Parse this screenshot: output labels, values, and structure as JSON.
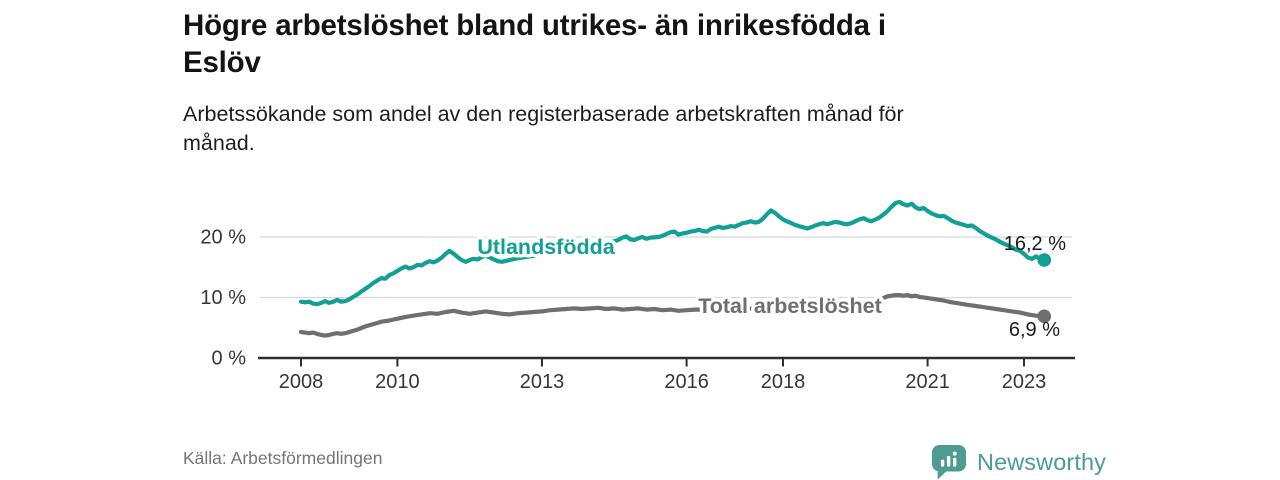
{
  "header": {
    "title_line1": "Högre arbetslöshet bland utrikes- än inrikesfödda i",
    "title_line2": "Eslöv",
    "subtitle_line1": "Arbetssökande som andel av den registerbaserade arbetskraften månad för",
    "subtitle_line2": "månad."
  },
  "footer": {
    "source": "Källa: Arbetsförmedlingen",
    "brand": "Newsworthy"
  },
  "colors": {
    "series_utlandsfodda": "#12a096",
    "series_total": "#6f6f6f",
    "grid": "#d8d8d8",
    "axis": "#2f2f2f",
    "tick_text": "#363636",
    "end_label_text": "#1b1b1b",
    "brand_teal": "#4d9b94"
  },
  "chart_data": {
    "type": "line",
    "title": "Högre arbetslöshet bland utrikes- än inrikesfödda i Eslöv",
    "xlabel": "",
    "ylabel": "",
    "x_unit": "year (monthly data)",
    "y_unit": "% av registerbaserade arbetskraften",
    "ylim": [
      0,
      27
    ],
    "xlim": [
      2007.6,
      2023.6
    ],
    "grid": "horizontal",
    "legend_position": "inline-labels",
    "yticks": [
      {
        "value": 20,
        "label": "20 %"
      },
      {
        "value": 10,
        "label": "10 %"
      },
      {
        "value": 0,
        "label": "0 %"
      }
    ],
    "xticks": [
      {
        "value": 2008,
        "label": "2008"
      },
      {
        "value": 2010,
        "label": "2010"
      },
      {
        "value": 2013,
        "label": "2013"
      },
      {
        "value": 2016,
        "label": "2016"
      },
      {
        "value": 2018,
        "label": "2018"
      },
      {
        "value": 2021,
        "label": "2021"
      },
      {
        "value": 2023,
        "label": "2023"
      }
    ],
    "series": [
      {
        "name": "Utlandsfödda",
        "color": "#12a096",
        "end_label": "16,2 %",
        "end_value": 16.2,
        "points": [
          [
            2008.0,
            9.3
          ],
          [
            2008.08,
            9.2
          ],
          [
            2008.17,
            9.3
          ],
          [
            2008.25,
            9.0
          ],
          [
            2008.33,
            8.9
          ],
          [
            2008.42,
            9.1
          ],
          [
            2008.5,
            9.4
          ],
          [
            2008.58,
            9.1
          ],
          [
            2008.67,
            9.3
          ],
          [
            2008.75,
            9.6
          ],
          [
            2008.83,
            9.3
          ],
          [
            2008.92,
            9.4
          ],
          [
            2009.0,
            9.7
          ],
          [
            2009.08,
            10.1
          ],
          [
            2009.17,
            10.5
          ],
          [
            2009.25,
            11.0
          ],
          [
            2009.33,
            11.4
          ],
          [
            2009.42,
            11.9
          ],
          [
            2009.5,
            12.4
          ],
          [
            2009.58,
            12.8
          ],
          [
            2009.67,
            13.2
          ],
          [
            2009.75,
            13.1
          ],
          [
            2009.83,
            13.7
          ],
          [
            2009.92,
            14.0
          ],
          [
            2010.0,
            14.4
          ],
          [
            2010.08,
            14.8
          ],
          [
            2010.17,
            15.1
          ],
          [
            2010.25,
            14.8
          ],
          [
            2010.33,
            15.0
          ],
          [
            2010.42,
            15.4
          ],
          [
            2010.5,
            15.3
          ],
          [
            2010.58,
            15.7
          ],
          [
            2010.67,
            16.0
          ],
          [
            2010.75,
            15.8
          ],
          [
            2010.83,
            16.1
          ],
          [
            2010.92,
            16.6
          ],
          [
            2011.0,
            17.2
          ],
          [
            2011.08,
            17.7
          ],
          [
            2011.17,
            17.2
          ],
          [
            2011.25,
            16.7
          ],
          [
            2011.33,
            16.2
          ],
          [
            2011.42,
            15.9
          ],
          [
            2011.5,
            16.2
          ],
          [
            2011.58,
            16.4
          ],
          [
            2011.67,
            16.3
          ],
          [
            2011.75,
            16.7
          ],
          [
            2011.83,
            16.9
          ],
          [
            2011.92,
            16.6
          ],
          [
            2012.0,
            16.3
          ],
          [
            2012.08,
            16.0
          ],
          [
            2012.17,
            15.9
          ],
          [
            2012.33,
            16.2
          ],
          [
            2012.5,
            16.5
          ],
          [
            2012.67,
            16.7
          ],
          [
            2012.83,
            16.9
          ],
          [
            2013.0,
            17.1
          ],
          [
            2013.25,
            17.5
          ],
          [
            2013.5,
            17.9
          ],
          [
            2013.75,
            18.3
          ],
          [
            2014.0,
            18.6
          ],
          [
            2014.25,
            18.9
          ],
          [
            2014.42,
            19.1
          ],
          [
            2014.58,
            19.5
          ],
          [
            2014.67,
            19.9
          ],
          [
            2014.75,
            20.1
          ],
          [
            2014.83,
            19.6
          ],
          [
            2014.92,
            19.5
          ],
          [
            2015.0,
            19.8
          ],
          [
            2015.08,
            20.0
          ],
          [
            2015.17,
            19.7
          ],
          [
            2015.25,
            19.9
          ],
          [
            2015.42,
            20.0
          ],
          [
            2015.5,
            20.2
          ],
          [
            2015.58,
            20.5
          ],
          [
            2015.67,
            20.8
          ],
          [
            2015.75,
            20.9
          ],
          [
            2015.83,
            20.4
          ],
          [
            2015.92,
            20.6
          ],
          [
            2016.0,
            20.7
          ],
          [
            2016.08,
            20.9
          ],
          [
            2016.17,
            21.0
          ],
          [
            2016.25,
            21.2
          ],
          [
            2016.33,
            21.0
          ],
          [
            2016.42,
            20.9
          ],
          [
            2016.5,
            21.3
          ],
          [
            2016.58,
            21.5
          ],
          [
            2016.67,
            21.7
          ],
          [
            2016.75,
            21.5
          ],
          [
            2016.83,
            21.6
          ],
          [
            2016.92,
            21.8
          ],
          [
            2017.0,
            21.7
          ],
          [
            2017.08,
            22.0
          ],
          [
            2017.17,
            22.3
          ],
          [
            2017.25,
            22.4
          ],
          [
            2017.33,
            22.6
          ],
          [
            2017.42,
            22.4
          ],
          [
            2017.5,
            22.5
          ],
          [
            2017.58,
            23.0
          ],
          [
            2017.67,
            23.8
          ],
          [
            2017.75,
            24.4
          ],
          [
            2017.83,
            24.0
          ],
          [
            2017.92,
            23.4
          ],
          [
            2018.0,
            22.9
          ],
          [
            2018.08,
            22.6
          ],
          [
            2018.17,
            22.3
          ],
          [
            2018.25,
            22.0
          ],
          [
            2018.33,
            21.8
          ],
          [
            2018.42,
            21.6
          ],
          [
            2018.5,
            21.4
          ],
          [
            2018.58,
            21.6
          ],
          [
            2018.67,
            21.9
          ],
          [
            2018.75,
            22.1
          ],
          [
            2018.83,
            22.3
          ],
          [
            2018.92,
            22.1
          ],
          [
            2019.0,
            22.3
          ],
          [
            2019.08,
            22.5
          ],
          [
            2019.17,
            22.4
          ],
          [
            2019.25,
            22.2
          ],
          [
            2019.33,
            22.1
          ],
          [
            2019.42,
            22.3
          ],
          [
            2019.5,
            22.6
          ],
          [
            2019.58,
            22.9
          ],
          [
            2019.67,
            23.1
          ],
          [
            2019.75,
            22.8
          ],
          [
            2019.83,
            22.6
          ],
          [
            2019.92,
            22.9
          ],
          [
            2020.0,
            23.2
          ],
          [
            2020.08,
            23.7
          ],
          [
            2020.17,
            24.3
          ],
          [
            2020.25,
            25.0
          ],
          [
            2020.33,
            25.6
          ],
          [
            2020.42,
            25.8
          ],
          [
            2020.5,
            25.4
          ],
          [
            2020.58,
            25.2
          ],
          [
            2020.67,
            25.5
          ],
          [
            2020.75,
            24.9
          ],
          [
            2020.83,
            24.6
          ],
          [
            2020.92,
            24.8
          ],
          [
            2021.0,
            24.3
          ],
          [
            2021.08,
            23.9
          ],
          [
            2021.17,
            23.6
          ],
          [
            2021.25,
            23.4
          ],
          [
            2021.33,
            23.5
          ],
          [
            2021.42,
            23.1
          ],
          [
            2021.5,
            22.7
          ],
          [
            2021.58,
            22.4
          ],
          [
            2021.67,
            22.2
          ],
          [
            2021.75,
            22.0
          ],
          [
            2021.83,
            21.8
          ],
          [
            2021.92,
            21.9
          ],
          [
            2022.0,
            21.5
          ],
          [
            2022.08,
            21.0
          ],
          [
            2022.17,
            20.6
          ],
          [
            2022.25,
            20.2
          ],
          [
            2022.33,
            19.9
          ],
          [
            2022.42,
            19.6
          ],
          [
            2022.5,
            19.2
          ],
          [
            2022.58,
            18.9
          ],
          [
            2022.67,
            18.6
          ],
          [
            2022.75,
            18.3
          ],
          [
            2022.83,
            17.9
          ],
          [
            2022.92,
            17.7
          ],
          [
            2023.0,
            17.2
          ],
          [
            2023.08,
            16.6
          ],
          [
            2023.17,
            16.4
          ],
          [
            2023.25,
            16.8
          ],
          [
            2023.33,
            16.3
          ],
          [
            2023.42,
            16.2
          ]
        ]
      },
      {
        "name": "Total arbetslöshet",
        "color": "#6f6f6f",
        "end_label": "6,9 %",
        "end_value": 6.9,
        "points": [
          [
            2008.0,
            4.3
          ],
          [
            2008.08,
            4.2
          ],
          [
            2008.17,
            4.1
          ],
          [
            2008.25,
            4.2
          ],
          [
            2008.33,
            4.0
          ],
          [
            2008.42,
            3.8
          ],
          [
            2008.5,
            3.7
          ],
          [
            2008.58,
            3.8
          ],
          [
            2008.67,
            4.0
          ],
          [
            2008.75,
            4.1
          ],
          [
            2008.83,
            4.0
          ],
          [
            2008.92,
            4.1
          ],
          [
            2009.0,
            4.3
          ],
          [
            2009.17,
            4.7
          ],
          [
            2009.33,
            5.2
          ],
          [
            2009.5,
            5.6
          ],
          [
            2009.67,
            6.0
          ],
          [
            2009.83,
            6.2
          ],
          [
            2010.0,
            6.5
          ],
          [
            2010.17,
            6.8
          ],
          [
            2010.33,
            7.0
          ],
          [
            2010.5,
            7.2
          ],
          [
            2010.67,
            7.4
          ],
          [
            2010.83,
            7.3
          ],
          [
            2011.0,
            7.6
          ],
          [
            2011.17,
            7.8
          ],
          [
            2011.33,
            7.5
          ],
          [
            2011.5,
            7.3
          ],
          [
            2011.67,
            7.5
          ],
          [
            2011.83,
            7.7
          ],
          [
            2012.0,
            7.5
          ],
          [
            2012.17,
            7.3
          ],
          [
            2012.33,
            7.2
          ],
          [
            2012.5,
            7.4
          ],
          [
            2012.67,
            7.5
          ],
          [
            2012.83,
            7.6
          ],
          [
            2013.0,
            7.7
          ],
          [
            2013.17,
            7.9
          ],
          [
            2013.33,
            8.0
          ],
          [
            2013.5,
            8.1
          ],
          [
            2013.67,
            8.2
          ],
          [
            2013.83,
            8.1
          ],
          [
            2014.0,
            8.2
          ],
          [
            2014.17,
            8.3
          ],
          [
            2014.33,
            8.1
          ],
          [
            2014.5,
            8.2
          ],
          [
            2014.67,
            8.0
          ],
          [
            2014.83,
            8.1
          ],
          [
            2015.0,
            8.2
          ],
          [
            2015.17,
            8.0
          ],
          [
            2015.33,
            8.1
          ],
          [
            2015.5,
            7.9
          ],
          [
            2015.67,
            8.0
          ],
          [
            2015.83,
            7.8
          ],
          [
            2016.0,
            7.9
          ],
          [
            2016.17,
            8.0
          ],
          [
            2016.33,
            8.0
          ],
          [
            2016.5,
            8.1
          ],
          [
            2016.75,
            8.0
          ],
          [
            2017.0,
            8.1
          ],
          [
            2017.25,
            8.2
          ],
          [
            2017.5,
            8.1
          ],
          [
            2017.75,
            8.0
          ],
          [
            2018.0,
            7.9
          ],
          [
            2018.25,
            7.8
          ],
          [
            2018.5,
            7.9
          ],
          [
            2018.75,
            8.0
          ],
          [
            2019.0,
            7.9
          ],
          [
            2019.25,
            8.0
          ],
          [
            2019.5,
            8.2
          ],
          [
            2019.75,
            8.6
          ],
          [
            2019.92,
            9.1
          ],
          [
            2020.0,
            9.5
          ],
          [
            2020.08,
            9.9
          ],
          [
            2020.17,
            10.2
          ],
          [
            2020.25,
            10.3
          ],
          [
            2020.33,
            10.4
          ],
          [
            2020.42,
            10.4
          ],
          [
            2020.5,
            10.3
          ],
          [
            2020.58,
            10.4
          ],
          [
            2020.67,
            10.2
          ],
          [
            2020.75,
            10.3
          ],
          [
            2020.83,
            10.1
          ],
          [
            2020.92,
            10.0
          ],
          [
            2021.0,
            9.9
          ],
          [
            2021.17,
            9.7
          ],
          [
            2021.33,
            9.5
          ],
          [
            2021.5,
            9.2
          ],
          [
            2021.67,
            9.0
          ],
          [
            2021.83,
            8.8
          ],
          [
            2022.0,
            8.6
          ],
          [
            2022.17,
            8.4
          ],
          [
            2022.25,
            8.3
          ],
          [
            2022.42,
            8.1
          ],
          [
            2022.58,
            7.9
          ],
          [
            2022.75,
            7.7
          ],
          [
            2022.92,
            7.5
          ],
          [
            2023.08,
            7.2
          ],
          [
            2023.25,
            7.0
          ],
          [
            2023.42,
            6.9
          ]
        ]
      }
    ]
  }
}
